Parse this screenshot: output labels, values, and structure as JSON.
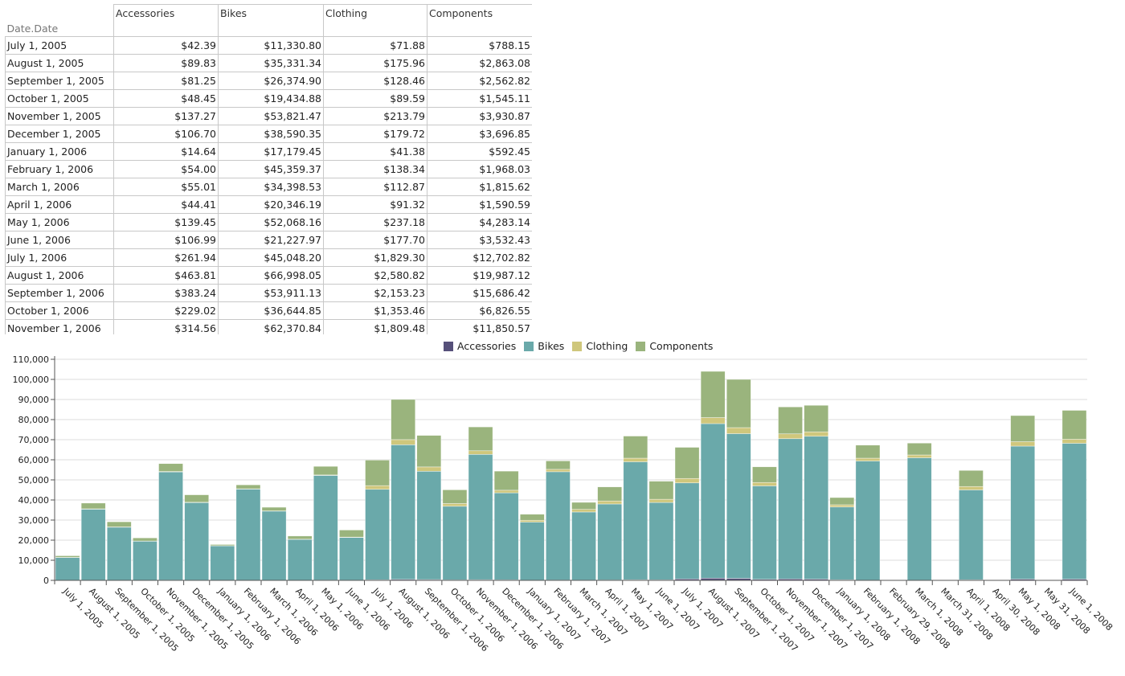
{
  "table": {
    "corner_label": "Date.Date",
    "columns": [
      "Accessories",
      "Bikes",
      "Clothing",
      "Components"
    ],
    "rows": [
      {
        "date": "July 1, 2005",
        "values": [
          "$42.39",
          "$11,330.80",
          "$71.88",
          "$788.15"
        ]
      },
      {
        "date": "August 1, 2005",
        "values": [
          "$89.83",
          "$35,331.34",
          "$175.96",
          "$2,863.08"
        ]
      },
      {
        "date": "September 1, 2005",
        "values": [
          "$81.25",
          "$26,374.90",
          "$128.46",
          "$2,562.82"
        ]
      },
      {
        "date": "October 1, 2005",
        "values": [
          "$48.45",
          "$19,434.88",
          "$89.59",
          "$1,545.11"
        ]
      },
      {
        "date": "November 1, 2005",
        "values": [
          "$137.27",
          "$53,821.47",
          "$213.79",
          "$3,930.87"
        ]
      },
      {
        "date": "December 1, 2005",
        "values": [
          "$106.70",
          "$38,590.35",
          "$179.72",
          "$3,696.85"
        ]
      },
      {
        "date": "January 1, 2006",
        "values": [
          "$14.64",
          "$17,179.45",
          "$41.38",
          "$592.45"
        ]
      },
      {
        "date": "February 1, 2006",
        "values": [
          "$54.00",
          "$45,359.37",
          "$138.34",
          "$1,968.03"
        ]
      },
      {
        "date": "March 1, 2006",
        "values": [
          "$55.01",
          "$34,398.53",
          "$112.87",
          "$1,815.62"
        ]
      },
      {
        "date": "April 1, 2006",
        "values": [
          "$44.41",
          "$20,346.19",
          "$91.32",
          "$1,590.59"
        ]
      },
      {
        "date": "May 1, 2006",
        "values": [
          "$139.45",
          "$52,068.16",
          "$237.18",
          "$4,283.14"
        ]
      },
      {
        "date": "June 1, 2006",
        "values": [
          "$106.99",
          "$21,227.97",
          "$177.70",
          "$3,532.43"
        ]
      },
      {
        "date": "July 1, 2006",
        "values": [
          "$261.94",
          "$45,048.20",
          "$1,829.30",
          "$12,702.82"
        ]
      },
      {
        "date": "August 1, 2006",
        "values": [
          "$463.81",
          "$66,998.05",
          "$2,580.82",
          "$19,987.12"
        ]
      },
      {
        "date": "September 1, 2006",
        "values": [
          "$383.24",
          "$53,911.13",
          "$2,153.23",
          "$15,686.42"
        ]
      },
      {
        "date": "October 1, 2006",
        "values": [
          "$229.02",
          "$36,644.85",
          "$1,353.46",
          "$6,826.55"
        ]
      },
      {
        "date": "November 1, 2006",
        "values": [
          "$314.56",
          "$62,370.84",
          "$1,809.48",
          "$11,850.57"
        ]
      }
    ]
  },
  "colors": {
    "Accessories": "#56507a",
    "Bikes": "#6aa9aa",
    "Clothing": "#cfc77c",
    "Components": "#9ab47d",
    "grid": "#dcdcdc",
    "axis": "#555555"
  },
  "chart_data": {
    "type": "bar",
    "stacked": true,
    "title": "",
    "xlabel": "",
    "ylabel": "",
    "ylim": [
      0,
      110000
    ],
    "yticks": [
      0,
      10000,
      20000,
      30000,
      40000,
      50000,
      60000,
      70000,
      80000,
      90000,
      100000,
      110000
    ],
    "ytick_labels": [
      "0",
      "10,000",
      "20,000",
      "30,000",
      "40,000",
      "50,000",
      "60,000",
      "70,000",
      "80,000",
      "90,000",
      "100,000",
      "110,000"
    ],
    "grid": true,
    "legend_position": "top-center",
    "categories": [
      "July 1, 2005",
      "August 1, 2005",
      "September 1, 2005",
      "October 1, 2005",
      "November 1, 2005",
      "December 1, 2005",
      "January 1, 2006",
      "February 1, 2006",
      "March 1, 2006",
      "April 1, 2006",
      "May 1, 2006",
      "June 1, 2006",
      "July 1, 2006",
      "August 1, 2006",
      "September 1, 2006",
      "October 1, 2006",
      "November 1, 2006",
      "December 1, 2006",
      "January 1, 2007",
      "February 1, 2007",
      "March 1, 2007",
      "April 1, 2007",
      "May 1, 2007",
      "June 1, 2007",
      "July 1, 2007",
      "August 1, 2007",
      "September 1, 2007",
      "October 1, 2007",
      "November 1, 2007",
      "December 1, 2007",
      "January 1, 2008",
      "February 1, 2008",
      "February 29, 2008",
      "March 1, 2008",
      "March 31, 2008",
      "April 1, 2008",
      "April 30, 2008",
      "May 1, 2008",
      "May 31, 2008",
      "June 1, 2008"
    ],
    "series": [
      {
        "name": "Accessories",
        "values": [
          42.39,
          89.83,
          81.25,
          48.45,
          137.27,
          106.7,
          14.64,
          54.0,
          55.01,
          44.41,
          139.45,
          106.99,
          261.94,
          463.81,
          383.24,
          229.02,
          314.56,
          250,
          100,
          150,
          120,
          200,
          300,
          250,
          700,
          1100,
          1000,
          500,
          700,
          600,
          300,
          100,
          0,
          100,
          0,
          300,
          0,
          600,
          0,
          600
        ]
      },
      {
        "name": "Bikes",
        "values": [
          11330.8,
          35331.34,
          26374.9,
          19434.88,
          53821.47,
          38590.35,
          17179.45,
          45359.37,
          34398.53,
          20346.19,
          52068.16,
          21227.97,
          45048.2,
          66998.05,
          53911.13,
          36644.85,
          62370.84,
          43300,
          28900,
          53900,
          33900,
          37800,
          58700,
          38500,
          47800,
          76900,
          72000,
          46500,
          69800,
          71100,
          36200,
          59300,
          0,
          60900,
          0,
          44700,
          0,
          66200,
          0,
          67600
        ]
      },
      {
        "name": "Clothing",
        "values": [
          71.88,
          175.96,
          128.46,
          89.59,
          213.79,
          179.72,
          41.38,
          138.34,
          112.87,
          91.32,
          237.18,
          177.7,
          1829.3,
          2580.82,
          2153.23,
          1353.46,
          1809.48,
          1300,
          900,
          1200,
          1300,
          1500,
          1800,
          1600,
          2200,
          3000,
          3000,
          1700,
          2400,
          2200,
          1100,
          1400,
          0,
          1400,
          0,
          1700,
          0,
          2200,
          0,
          2000
        ]
      },
      {
        "name": "Components",
        "values": [
          788.15,
          2863.08,
          2562.82,
          1545.11,
          3930.87,
          3696.85,
          592.45,
          1968.03,
          1815.62,
          1590.59,
          4283.14,
          3532.43,
          12702.82,
          19987.12,
          15686.42,
          6826.55,
          11850.57,
          9500,
          3000,
          4200,
          3500,
          7000,
          11000,
          9000,
          15500,
          23000,
          24000,
          7800,
          13400,
          13200,
          3600,
          6500,
          0,
          5900,
          0,
          8000,
          0,
          13000,
          0,
          14400
        ]
      }
    ]
  }
}
